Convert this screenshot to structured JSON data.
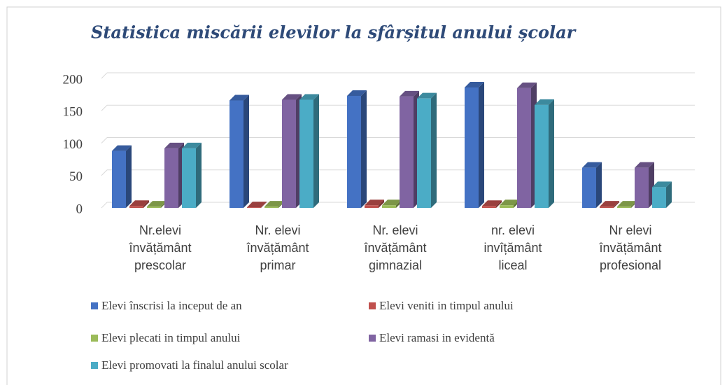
{
  "chart_data": {
    "type": "bar3d",
    "title": "Statistica miscării elevilor la sfârșitul anului școlar",
    "categories": [
      "Nr.elevi\nînvățământ\nprescolar",
      "Nr. elevi\nînvățământ\nprimar",
      "Nr. elevi\nînvățământ\ngimnazial",
      "nr. elevi\ninvîțământ\nliceal",
      "Nr elevi\nînvățământ\nprofesional"
    ],
    "series": [
      {
        "name": "Elevi înscrisi la inceput de an",
        "color": "#4472c4",
        "values": [
          88,
          166,
          173,
          186,
          62
        ]
      },
      {
        "name": "Elevi veniti in timpul anului",
        "color": "#c0504d",
        "values": [
          3,
          1,
          4,
          3,
          2
        ]
      },
      {
        "name": "Elevi plecati in timpul anului",
        "color": "#9bbb59",
        "values": [
          2,
          2,
          4,
          4,
          2
        ]
      },
      {
        "name": "Elevi ramasi in evidentă",
        "color": "#8064a2",
        "values": [
          92,
          167,
          172,
          185,
          62
        ]
      },
      {
        "name": "Elevi promovati la finalul anului scolar",
        "color": "#4bacc6",
        "values": [
          92,
          167,
          169,
          159,
          32
        ]
      }
    ],
    "ylim": [
      0,
      200
    ],
    "yticks": [
      0,
      50,
      100,
      150,
      200
    ],
    "grid": true
  }
}
